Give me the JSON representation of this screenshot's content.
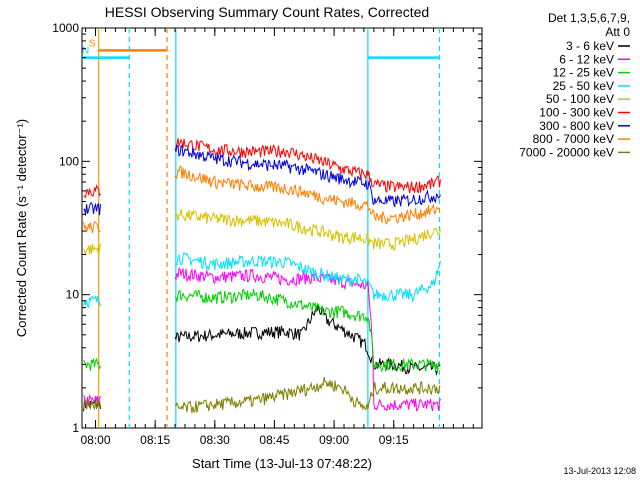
{
  "chart_data": {
    "type": "line",
    "title": "HESSI Observing Summary Count Rates, Corrected",
    "xlabel": "Start Time (13-Jul-13 07:48:22)",
    "ylabel": "Corrected Count Rate (s⁻¹ detector⁻¹)",
    "y_scale": "log",
    "ylim": [
      1,
      1000
    ],
    "xlim_minutes": [
      -3.4,
      97.2
    ],
    "x_tick_labels": [
      "08:00",
      "08:15",
      "08:30",
      "08:45",
      "09:00",
      "09:15"
    ],
    "x_tick_minutes": [
      0,
      15,
      30,
      45,
      60,
      75
    ],
    "y_tick_labels": [
      "1",
      "10",
      "100",
      "1000"
    ],
    "y_ticks": [
      1,
      10,
      100,
      1000
    ],
    "legend": {
      "header": [
        "Det 1,3,5,6,7,9,",
        "Att 0"
      ],
      "placement": "outside-right"
    },
    "footer_date": "13-Jul-2013 12:08",
    "vertical_markers": [
      {
        "minute": 0.8,
        "color": "#f0a000",
        "style": "solid"
      },
      {
        "minute": 8.5,
        "color": "#00e0ff",
        "style": "dashed"
      },
      {
        "minute": 18.0,
        "color": "#ff8000",
        "style": "dashed"
      },
      {
        "minute": 20.2,
        "color": "#00e0ff",
        "style": "solid"
      },
      {
        "minute": 68.5,
        "color": "#00e0ff",
        "style": "solid"
      },
      {
        "minute": 86.5,
        "color": "#00e0ff",
        "style": "dashed"
      }
    ],
    "bars": [
      {
        "label": "S",
        "start": 0.8,
        "end": 18.0,
        "value": 680,
        "color": "#ff8000",
        "label_color": "#ff8000"
      },
      {
        "label": "N",
        "start": -3.4,
        "end": 8.5,
        "value": 600,
        "color": "#00e0ff",
        "label_color": "#00e0ff"
      },
      {
        "label": "",
        "start": 68.5,
        "end": 86.5,
        "value": 600,
        "color": "#00e0ff",
        "label_color": "#00e0ff"
      }
    ],
    "series": [
      {
        "name": "3 - 6 keV",
        "color": "#000000",
        "x": [
          -3,
          -1,
          1,
          21,
          30,
          40,
          48,
          52,
          56,
          58,
          62,
          68,
          70,
          75,
          80,
          85,
          87
        ],
        "y": [
          1.5,
          1.5,
          1.5,
          4.8,
          5.0,
          5.2,
          5.3,
          5.0,
          8.0,
          6.5,
          5.5,
          4.2,
          3.0,
          3.0,
          2.8,
          2.8,
          2.8
        ]
      },
      {
        "name": "6 - 12 keV",
        "color": "#ff00ff",
        "x": [
          -3,
          -1,
          1,
          21,
          30,
          40,
          48,
          54,
          58,
          62,
          66,
          68.5,
          70,
          75,
          80,
          85,
          87
        ],
        "y": [
          1.6,
          1.6,
          1.6,
          14.5,
          13.5,
          14.0,
          13.0,
          13.5,
          13.0,
          12.5,
          12.0,
          11.5,
          1.5,
          1.5,
          1.5,
          1.5,
          1.5
        ]
      },
      {
        "name": "12 - 25 keV",
        "color": "#00d000",
        "x": [
          -3,
          -1,
          1,
          21,
          30,
          40,
          48,
          54,
          58,
          62,
          66,
          68.5,
          70,
          75,
          80,
          85,
          87
        ],
        "y": [
          3.0,
          3.0,
          3.0,
          10.0,
          9.5,
          10.0,
          9.0,
          8.0,
          7.5,
          7.5,
          7.0,
          7.0,
          3.0,
          3.0,
          3.0,
          3.0,
          3.0
        ]
      },
      {
        "name": "25 - 50 keV",
        "color": "#00e0ff",
        "x": [
          -3,
          -1,
          1,
          21,
          30,
          40,
          48,
          54,
          58,
          62,
          66,
          68.5,
          70,
          75,
          80,
          85,
          87
        ],
        "y": [
          9.0,
          9.0,
          9.0,
          19.0,
          17.0,
          18.0,
          17.5,
          15.0,
          14.0,
          13.0,
          13.0,
          12.0,
          10.0,
          10.0,
          10.0,
          12.0,
          18.0
        ]
      },
      {
        "name": "50 - 100 keV",
        "color": "#d8c000",
        "x": [
          -3,
          -1,
          1,
          21,
          30,
          40,
          48,
          54,
          58,
          62,
          66,
          68.5,
          70,
          75,
          80,
          85,
          87
        ],
        "y": [
          22.0,
          22.0,
          22.0,
          40.0,
          37.0,
          36.0,
          34.0,
          31.0,
          29.0,
          27.0,
          27.0,
          26.0,
          24.0,
          24.0,
          26.0,
          30.0,
          30.0
        ]
      },
      {
        "name": "100 - 300 keV",
        "color": "#ff0000",
        "x": [
          -3,
          -1,
          1,
          21,
          30,
          40,
          48,
          54,
          58,
          62,
          66,
          68.5,
          70,
          75,
          80,
          85,
          87
        ],
        "y": [
          60.0,
          60.0,
          60.0,
          140.0,
          122.0,
          118.0,
          120.0,
          106.0,
          97.0,
          88.0,
          82.0,
          80.0,
          67.0,
          64.0,
          64.0,
          68.0,
          72.0
        ]
      },
      {
        "name": "300 - 800 keV",
        "color": "#0000e0",
        "x": [
          -3,
          -1,
          1,
          21,
          30,
          40,
          48,
          54,
          58,
          62,
          66,
          68.5,
          70,
          75,
          80,
          85,
          87
        ],
        "y": [
          44.0,
          44.0,
          44.0,
          122.0,
          105.0,
          96.0,
          92.0,
          85.0,
          79.0,
          74.0,
          70.0,
          68.0,
          51.0,
          50.0,
          52.0,
          55.0,
          57.0
        ]
      },
      {
        "name": "800 - 7000 keV",
        "color": "#ff8000",
        "x": [
          -3,
          -1,
          1,
          21,
          30,
          40,
          48,
          54,
          58,
          62,
          66,
          68.5,
          70,
          75,
          80,
          85,
          87
        ],
        "y": [
          32.0,
          32.0,
          32.0,
          84.0,
          70.0,
          65.0,
          63.0,
          57.0,
          53.0,
          50.0,
          48.0,
          47.0,
          38.0,
          38.0,
          40.0,
          43.0,
          45.0
        ]
      },
      {
        "name": "7000 - 20000 keV",
        "color": "#808000",
        "x": [
          -3,
          -1,
          1,
          21,
          30,
          40,
          48,
          54,
          58,
          62,
          66,
          68.5,
          70,
          75,
          80,
          85,
          87
        ],
        "y": [
          1.5,
          1.5,
          1.5,
          1.4,
          1.5,
          1.6,
          1.8,
          2.0,
          2.2,
          2.0,
          1.5,
          1.4,
          2.0,
          2.0,
          2.0,
          2.0,
          2.0
        ]
      }
    ]
  }
}
